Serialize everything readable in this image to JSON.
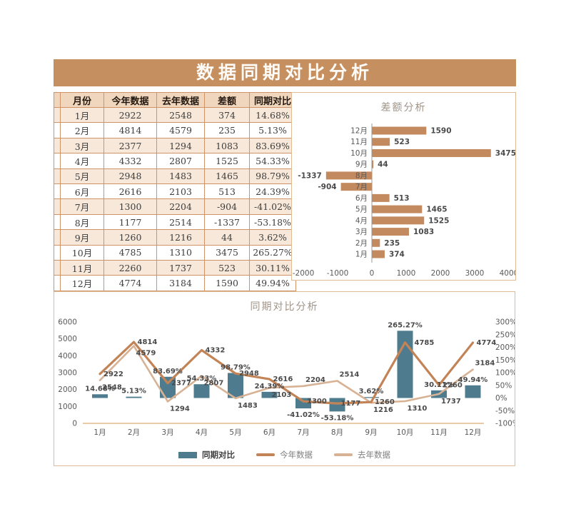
{
  "page_title": "数据同期对比分析",
  "table": {
    "headers": [
      "月份",
      "今年数据",
      "去年数据",
      "差额",
      "同期对比"
    ],
    "rows": [
      [
        "1月",
        "2922",
        "2548",
        "374",
        "14.68%"
      ],
      [
        "2月",
        "4814",
        "4579",
        "235",
        "5.13%"
      ],
      [
        "3月",
        "2377",
        "1294",
        "1083",
        "83.69%"
      ],
      [
        "4月",
        "4332",
        "2807",
        "1525",
        "54.33%"
      ],
      [
        "5月",
        "2948",
        "1483",
        "1465",
        "98.79%"
      ],
      [
        "6月",
        "2616",
        "2103",
        "513",
        "24.39%"
      ],
      [
        "7月",
        "1300",
        "2204",
        "-904",
        "-41.02%"
      ],
      [
        "8月",
        "1177",
        "2514",
        "-1337",
        "-53.18%"
      ],
      [
        "9月",
        "1260",
        "1216",
        "44",
        "3.62%"
      ],
      [
        "10月",
        "4785",
        "1310",
        "3475",
        "265.27%"
      ],
      [
        "11月",
        "2260",
        "1737",
        "523",
        "30.11%"
      ],
      [
        "12月",
        "4774",
        "3184",
        "1590",
        "49.94%"
      ]
    ]
  },
  "chart_data": [
    {
      "type": "bar",
      "orientation": "horizontal",
      "title": "差额分析",
      "categories": [
        "1月",
        "2月",
        "3月",
        "4月",
        "5月",
        "6月",
        "7月",
        "8月",
        "9月",
        "10月",
        "11月",
        "12月"
      ],
      "values": [
        374,
        235,
        1083,
        1525,
        1465,
        513,
        -904,
        -1337,
        44,
        3475,
        523,
        1590
      ],
      "display_order": "12月 at top, 1月 at bottom",
      "xlabel": "",
      "ylabel": "",
      "xlim": [
        -2000,
        4000
      ],
      "x_ticks": [
        -2000,
        -1000,
        0,
        1000,
        2000,
        3000,
        4000
      ],
      "grid": false,
      "bar_color": "#C48A5F"
    },
    {
      "type": "combo",
      "title": "同期对比分析",
      "categories": [
        "1月",
        "2月",
        "3月",
        "4月",
        "5月",
        "6月",
        "7月",
        "8月",
        "9月",
        "10月",
        "11月",
        "12月"
      ],
      "series": [
        {
          "name": "同期对比",
          "chart": "bar",
          "axis": "right",
          "color": "#4E7C8E",
          "values": [
            14.68,
            5.13,
            83.69,
            54.33,
            98.79,
            24.39,
            -41.02,
            -53.18,
            3.62,
            265.27,
            30.11,
            49.94
          ],
          "labels": [
            "14.68%",
            "5.13%",
            "83.69%",
            "54.33%",
            "98.79%",
            "24.39%",
            "-41.02%",
            "-53.18%",
            "3.62%",
            "265.27%",
            "30.11%",
            "49.94%"
          ]
        },
        {
          "name": "今年数据",
          "chart": "line",
          "axis": "left",
          "color": "#C28457",
          "values": [
            2922,
            4814,
            2377,
            4332,
            2948,
            2616,
            1300,
            1177,
            1260,
            4785,
            2260,
            4774
          ]
        },
        {
          "name": "去年数据",
          "chart": "line",
          "axis": "left",
          "color": "#D8B294",
          "values": [
            2548,
            4579,
            1294,
            2807,
            1483,
            2103,
            2204,
            2514,
            1216,
            1310,
            1737,
            3184
          ]
        }
      ],
      "left_axis": {
        "min": 0,
        "max": 6000,
        "step": 1000
      },
      "right_axis": {
        "min": -100,
        "max": 300,
        "step": 50,
        "unit": "%"
      },
      "grid": false,
      "legend_position": "bottom"
    }
  ],
  "colors": {
    "accent": "#C68F60",
    "diff_bar": "#C48A5F",
    "ratio_bar": "#4E7C8E",
    "line_this_year": "#C28457",
    "line_last_year": "#D8B294",
    "panel_border": "#E0BC96",
    "table_border": "#CE9467",
    "table_header_bg": "#EFD6BD",
    "table_alt_row_bg": "#F7E8D9",
    "chart_title_text": "#A09488",
    "data_label_text": "#4A4A4A",
    "tick_text": "#595959",
    "axis_line": "#EACBA8"
  }
}
